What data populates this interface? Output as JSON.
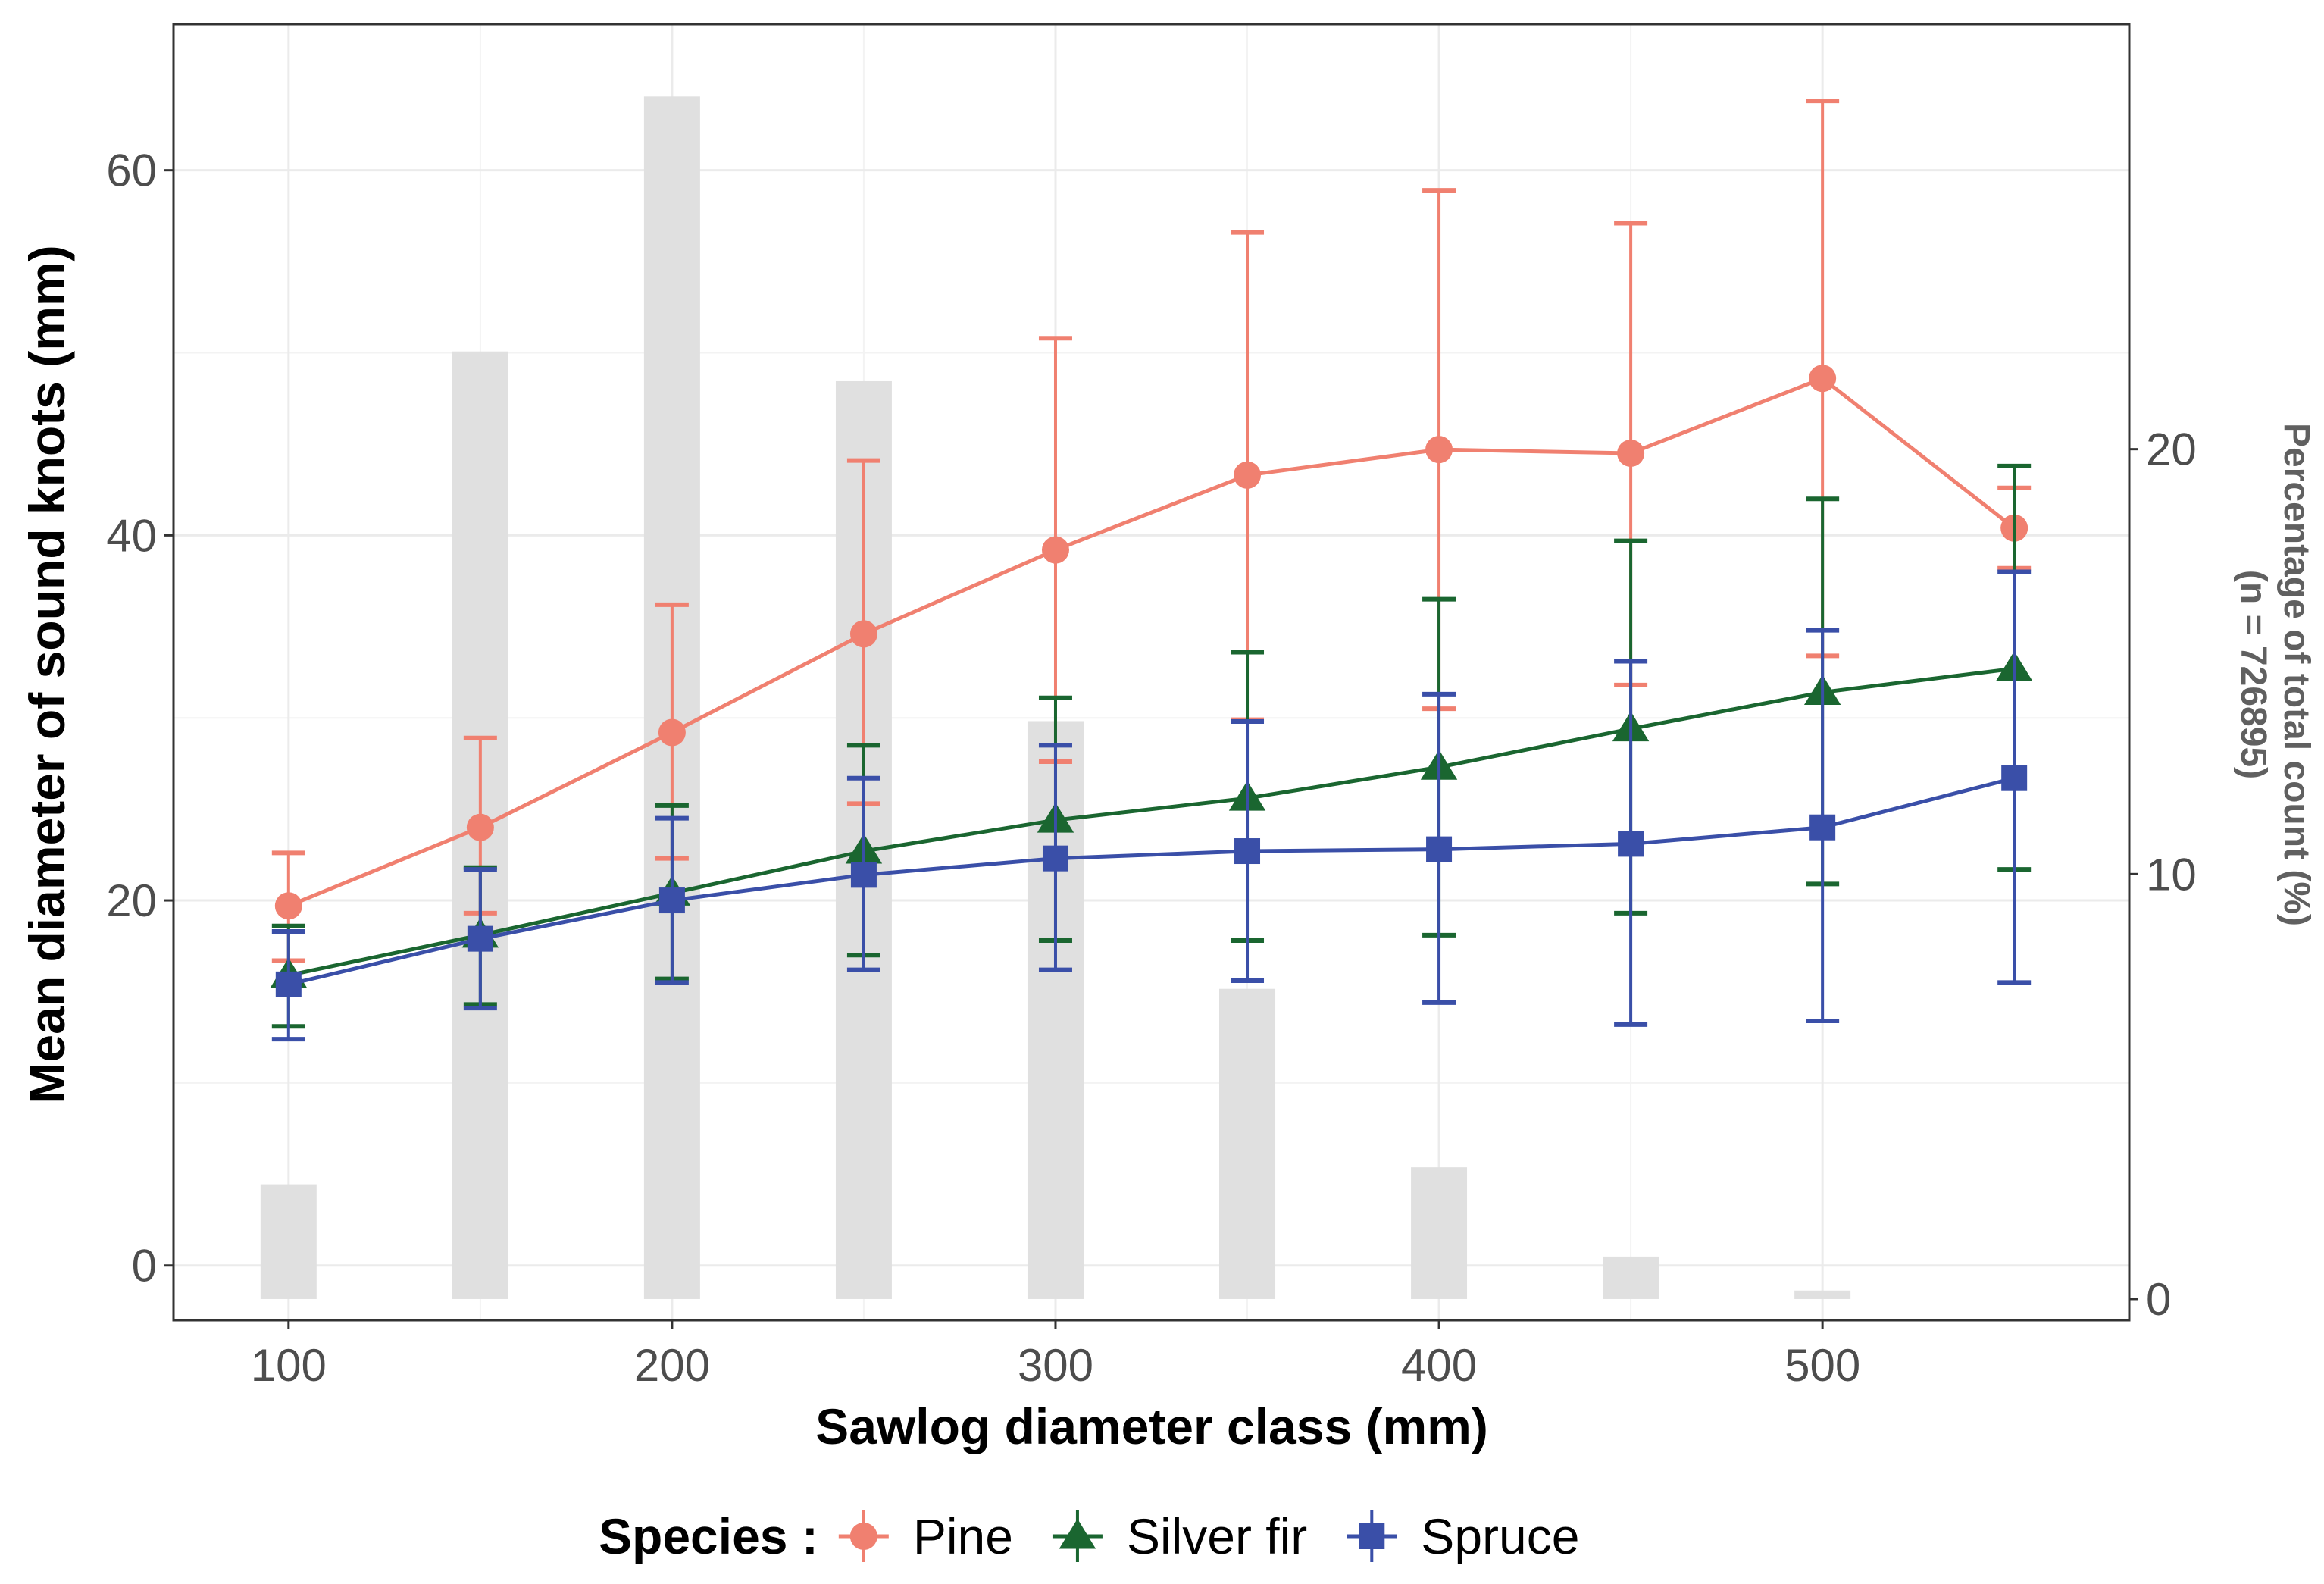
{
  "chart_data": {
    "type": "line",
    "xlabel": "Sawlog diameter class (mm)",
    "ylabel": "Mean diameter of sound knots (mm)",
    "y2label_line1": "Percentage of total count (%)",
    "y2label_line2": "(n = 726895)",
    "xlim": [
      70,
      580
    ],
    "ylim": [
      -3,
      68
    ],
    "y2lim": [
      -0.5,
      30
    ],
    "x_ticks": [
      100,
      200,
      300,
      400,
      500
    ],
    "y_ticks": [
      0,
      20,
      40,
      60
    ],
    "y2_ticks": [
      0,
      10,
      20
    ],
    "x": [
      100,
      150,
      200,
      250,
      300,
      350,
      400,
      450,
      500,
      550
    ],
    "bars": {
      "name": "Percentage of total count (%)",
      "values": [
        2.7,
        22.3,
        28.3,
        21.6,
        13.6,
        7.3,
        3.1,
        1.0,
        0.2,
        0.0
      ],
      "color": "#e0e0e0"
    },
    "series": [
      {
        "name": "Pine",
        "marker": "circle",
        "color": "#f08070",
        "mean": [
          19.7,
          24.0,
          29.2,
          34.6,
          39.2,
          43.3,
          44.7,
          44.5,
          48.6,
          40.4
        ],
        "lower": [
          16.7,
          19.3,
          22.3,
          25.3,
          27.6,
          29.9,
          30.5,
          31.8,
          33.4,
          38.2
        ],
        "upper": [
          22.6,
          28.9,
          36.2,
          44.1,
          50.8,
          56.6,
          58.9,
          57.1,
          63.8,
          42.6
        ]
      },
      {
        "name": "Silver fir",
        "marker": "triangle",
        "color": "#1a6630",
        "mean": [
          15.9,
          18.1,
          20.4,
          22.7,
          24.4,
          25.6,
          27.3,
          29.4,
          31.4,
          32.7
        ],
        "lower": [
          13.1,
          14.3,
          15.7,
          17.0,
          17.8,
          17.8,
          18.1,
          19.3,
          20.9,
          21.7
        ],
        "upper": [
          18.6,
          21.8,
          25.2,
          28.5,
          31.1,
          33.6,
          36.5,
          39.7,
          42.0,
          43.8
        ]
      },
      {
        "name": "Spruce",
        "marker": "square",
        "color": "#3a4fa8",
        "mean": [
          15.4,
          17.9,
          20.0,
          21.4,
          22.3,
          22.7,
          22.8,
          23.1,
          24.0,
          26.7
        ],
        "lower": [
          12.4,
          14.1,
          15.5,
          16.2,
          16.2,
          15.6,
          14.4,
          13.2,
          13.4,
          15.5
        ],
        "upper": [
          18.3,
          21.7,
          24.5,
          26.7,
          28.5,
          29.8,
          31.3,
          33.1,
          34.8,
          38.0
        ]
      }
    ],
    "legend": {
      "title": "Species :",
      "position": "bottom"
    },
    "grid": true
  }
}
